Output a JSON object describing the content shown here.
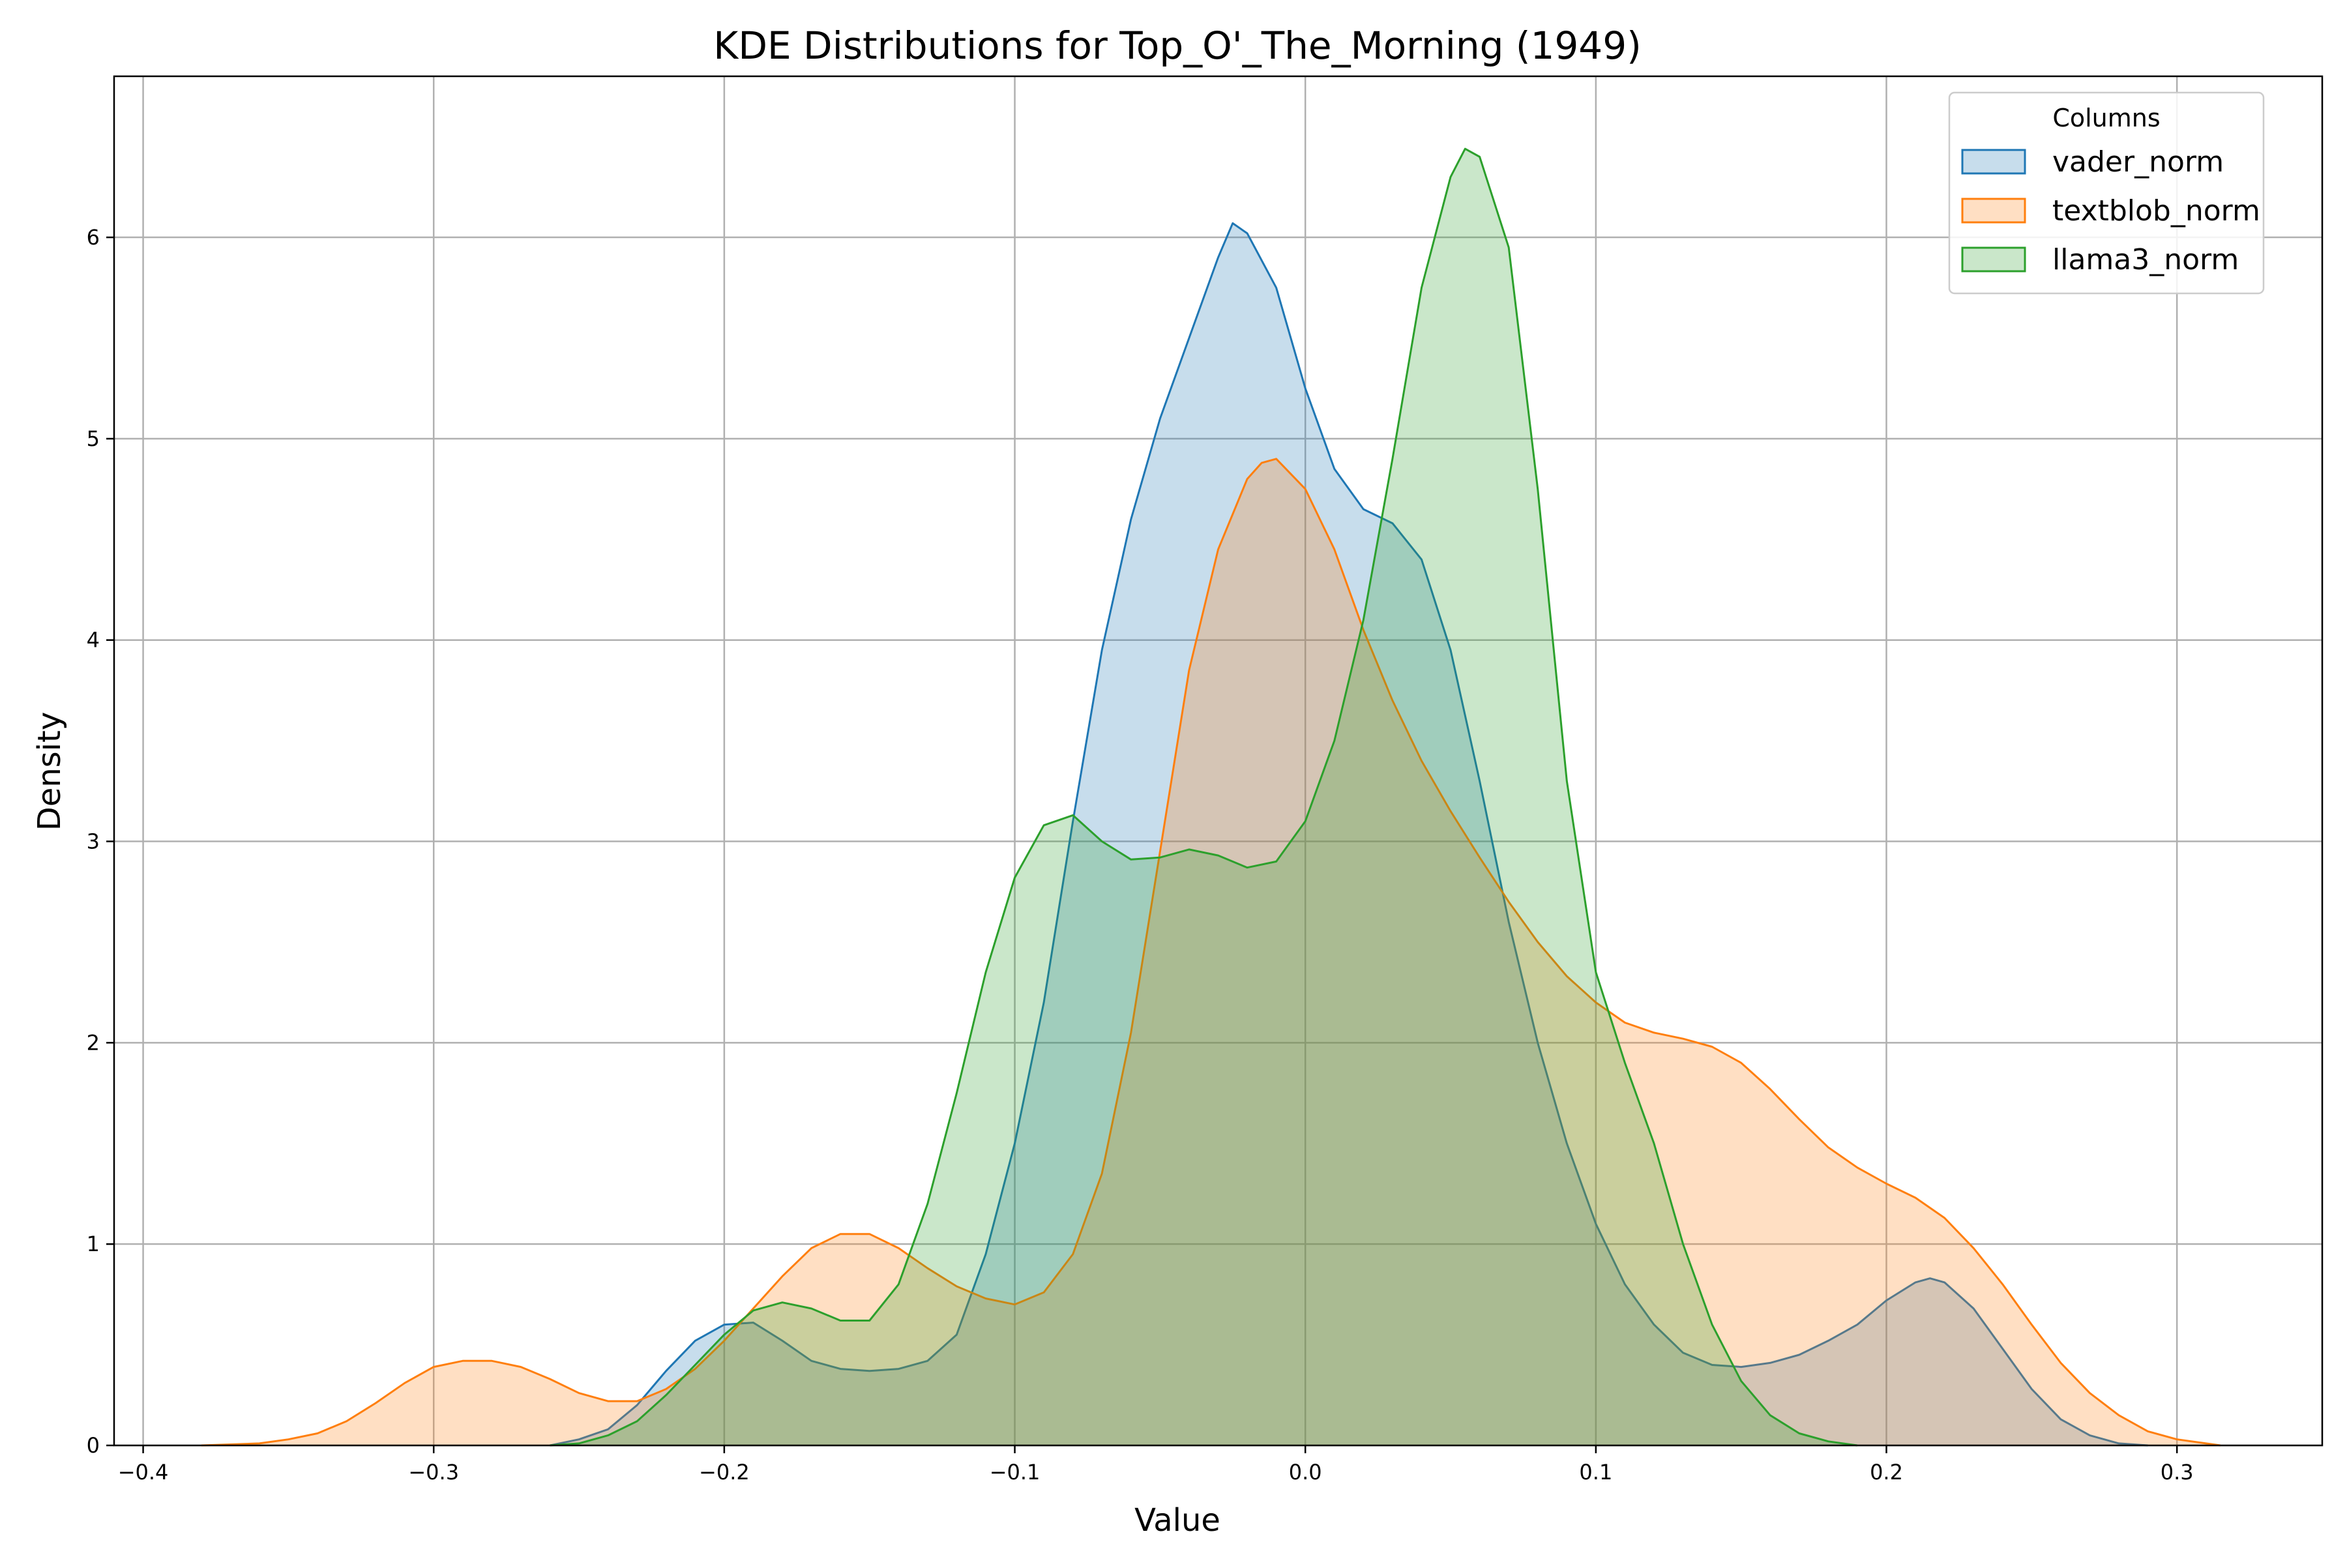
{
  "chart_data": {
    "type": "area",
    "title": "KDE Distributions for Top_O'_The_Morning (1949)",
    "xlabel": "Value",
    "ylabel": "Density",
    "xlim": [
      -0.41,
      0.35
    ],
    "ylim": [
      0,
      6.8
    ],
    "xticks": [
      -0.4,
      -0.3,
      -0.2,
      -0.1,
      0.0,
      0.1,
      0.2,
      0.3
    ],
    "xtick_labels": [
      "−0.4",
      "−0.3",
      "−0.2",
      "−0.1",
      "0.0",
      "0.1",
      "0.2",
      "0.3"
    ],
    "yticks": [
      0,
      1,
      2,
      3,
      4,
      5,
      6
    ],
    "ytick_labels": [
      "0",
      "1",
      "2",
      "3",
      "4",
      "5",
      "6"
    ],
    "grid": true,
    "legend": {
      "title": "Columns",
      "placement": "top-right"
    },
    "series": [
      {
        "name": "vader_norm",
        "color": "#1f77b4",
        "points": [
          [
            -0.26,
            0
          ],
          [
            -0.25,
            0.03
          ],
          [
            -0.24,
            0.08
          ],
          [
            -0.23,
            0.2
          ],
          [
            -0.22,
            0.37
          ],
          [
            -0.21,
            0.52
          ],
          [
            -0.2,
            0.6
          ],
          [
            -0.19,
            0.61
          ],
          [
            -0.18,
            0.52
          ],
          [
            -0.17,
            0.42
          ],
          [
            -0.16,
            0.38
          ],
          [
            -0.15,
            0.37
          ],
          [
            -0.14,
            0.38
          ],
          [
            -0.13,
            0.42
          ],
          [
            -0.12,
            0.55
          ],
          [
            -0.11,
            0.95
          ],
          [
            -0.1,
            1.5
          ],
          [
            -0.09,
            2.2
          ],
          [
            -0.08,
            3.1
          ],
          [
            -0.07,
            3.95
          ],
          [
            -0.06,
            4.6
          ],
          [
            -0.05,
            5.1
          ],
          [
            -0.04,
            5.5
          ],
          [
            -0.03,
            5.9
          ],
          [
            -0.025,
            6.07
          ],
          [
            -0.02,
            6.02
          ],
          [
            -0.01,
            5.75
          ],
          [
            0.0,
            5.25
          ],
          [
            0.01,
            4.85
          ],
          [
            0.02,
            4.65
          ],
          [
            0.03,
            4.58
          ],
          [
            0.04,
            4.4
          ],
          [
            0.05,
            3.95
          ],
          [
            0.06,
            3.3
          ],
          [
            0.07,
            2.6
          ],
          [
            0.08,
            2.0
          ],
          [
            0.09,
            1.5
          ],
          [
            0.1,
            1.1
          ],
          [
            0.11,
            0.8
          ],
          [
            0.12,
            0.6
          ],
          [
            0.13,
            0.46
          ],
          [
            0.14,
            0.4
          ],
          [
            0.15,
            0.39
          ],
          [
            0.16,
            0.41
          ],
          [
            0.17,
            0.45
          ],
          [
            0.18,
            0.52
          ],
          [
            0.19,
            0.6
          ],
          [
            0.2,
            0.72
          ],
          [
            0.21,
            0.81
          ],
          [
            0.215,
            0.83
          ],
          [
            0.22,
            0.81
          ],
          [
            0.23,
            0.68
          ],
          [
            0.24,
            0.48
          ],
          [
            0.25,
            0.28
          ],
          [
            0.26,
            0.13
          ],
          [
            0.27,
            0.05
          ],
          [
            0.28,
            0.01
          ],
          [
            0.29,
            0
          ]
        ]
      },
      {
        "name": "textblob_norm",
        "color": "#ff7f0e",
        "points": [
          [
            -0.38,
            0
          ],
          [
            -0.36,
            0.01
          ],
          [
            -0.35,
            0.03
          ],
          [
            -0.34,
            0.06
          ],
          [
            -0.33,
            0.12
          ],
          [
            -0.32,
            0.21
          ],
          [
            -0.31,
            0.31
          ],
          [
            -0.3,
            0.39
          ],
          [
            -0.29,
            0.42
          ],
          [
            -0.28,
            0.42
          ],
          [
            -0.27,
            0.39
          ],
          [
            -0.26,
            0.33
          ],
          [
            -0.25,
            0.26
          ],
          [
            -0.24,
            0.22
          ],
          [
            -0.23,
            0.22
          ],
          [
            -0.22,
            0.28
          ],
          [
            -0.21,
            0.38
          ],
          [
            -0.2,
            0.52
          ],
          [
            -0.19,
            0.68
          ],
          [
            -0.18,
            0.84
          ],
          [
            -0.17,
            0.98
          ],
          [
            -0.16,
            1.05
          ],
          [
            -0.15,
            1.05
          ],
          [
            -0.14,
            0.98
          ],
          [
            -0.13,
            0.88
          ],
          [
            -0.12,
            0.79
          ],
          [
            -0.11,
            0.73
          ],
          [
            -0.1,
            0.7
          ],
          [
            -0.09,
            0.76
          ],
          [
            -0.08,
            0.95
          ],
          [
            -0.07,
            1.35
          ],
          [
            -0.06,
            2.05
          ],
          [
            -0.05,
            2.95
          ],
          [
            -0.04,
            3.85
          ],
          [
            -0.03,
            4.45
          ],
          [
            -0.02,
            4.8
          ],
          [
            -0.015,
            4.88
          ],
          [
            -0.01,
            4.9
          ],
          [
            0.0,
            4.75
          ],
          [
            0.01,
            4.45
          ],
          [
            0.02,
            4.05
          ],
          [
            0.03,
            3.7
          ],
          [
            0.04,
            3.4
          ],
          [
            0.05,
            3.15
          ],
          [
            0.06,
            2.92
          ],
          [
            0.07,
            2.7
          ],
          [
            0.08,
            2.5
          ],
          [
            0.09,
            2.33
          ],
          [
            0.1,
            2.2
          ],
          [
            0.11,
            2.1
          ],
          [
            0.12,
            2.05
          ],
          [
            0.13,
            2.02
          ],
          [
            0.14,
            1.98
          ],
          [
            0.15,
            1.9
          ],
          [
            0.16,
            1.77
          ],
          [
            0.17,
            1.62
          ],
          [
            0.18,
            1.48
          ],
          [
            0.19,
            1.38
          ],
          [
            0.2,
            1.3
          ],
          [
            0.21,
            1.23
          ],
          [
            0.22,
            1.13
          ],
          [
            0.23,
            0.98
          ],
          [
            0.24,
            0.8
          ],
          [
            0.25,
            0.6
          ],
          [
            0.26,
            0.41
          ],
          [
            0.27,
            0.26
          ],
          [
            0.28,
            0.15
          ],
          [
            0.29,
            0.07
          ],
          [
            0.3,
            0.03
          ],
          [
            0.31,
            0.01
          ],
          [
            0.315,
            0
          ]
        ]
      },
      {
        "name": "llama3_norm",
        "color": "#2ca02c",
        "points": [
          [
            -0.26,
            0
          ],
          [
            -0.25,
            0.01
          ],
          [
            -0.24,
            0.05
          ],
          [
            -0.23,
            0.12
          ],
          [
            -0.22,
            0.25
          ],
          [
            -0.21,
            0.4
          ],
          [
            -0.2,
            0.55
          ],
          [
            -0.19,
            0.67
          ],
          [
            -0.18,
            0.71
          ],
          [
            -0.17,
            0.68
          ],
          [
            -0.16,
            0.62
          ],
          [
            -0.15,
            0.62
          ],
          [
            -0.14,
            0.8
          ],
          [
            -0.13,
            1.2
          ],
          [
            -0.12,
            1.75
          ],
          [
            -0.11,
            2.35
          ],
          [
            -0.1,
            2.82
          ],
          [
            -0.09,
            3.08
          ],
          [
            -0.08,
            3.13
          ],
          [
            -0.07,
            3.0
          ],
          [
            -0.06,
            2.91
          ],
          [
            -0.05,
            2.92
          ],
          [
            -0.04,
            2.96
          ],
          [
            -0.03,
            2.93
          ],
          [
            -0.02,
            2.87
          ],
          [
            -0.01,
            2.9
          ],
          [
            0.0,
            3.1
          ],
          [
            0.01,
            3.5
          ],
          [
            0.02,
            4.1
          ],
          [
            0.03,
            4.9
          ],
          [
            0.04,
            5.75
          ],
          [
            0.05,
            6.3
          ],
          [
            0.055,
            6.44
          ],
          [
            0.06,
            6.4
          ],
          [
            0.07,
            5.95
          ],
          [
            0.08,
            4.75
          ],
          [
            0.09,
            3.3
          ],
          [
            0.1,
            2.35
          ],
          [
            0.11,
            1.9
          ],
          [
            0.12,
            1.5
          ],
          [
            0.13,
            1.0
          ],
          [
            0.14,
            0.6
          ],
          [
            0.15,
            0.32
          ],
          [
            0.16,
            0.15
          ],
          [
            0.17,
            0.06
          ],
          [
            0.18,
            0.02
          ],
          [
            0.19,
            0
          ]
        ]
      }
    ]
  }
}
